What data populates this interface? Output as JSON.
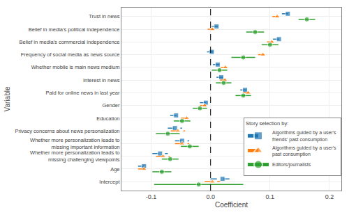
{
  "chart_data": {
    "type": "coefficient",
    "xlabel": "Coefficient",
    "ylabel": "Variable",
    "categories": [
      "Trust in news",
      "Belief in media's political independence",
      "Belief in media's commercial independence",
      "Frequency of social media as news source",
      "Whether mobile is main news medium",
      "Interest in news",
      "Paid for online news in last year",
      "Gender",
      "Education",
      "Privacy concerns about news personalization",
      "Whether more personalization leads to\nmissing important information",
      "Whether more personalization leads to\nmissing challenging viewpoints",
      "Age",
      "Intercept"
    ],
    "series": [
      {
        "name": "Algorithms guided by a user's\nfriends' past consumption",
        "marker": "square",
        "line_style": "dashed",
        "values": [
          0.13,
          0.01,
          0.115,
          0.002,
          0.012,
          0.018,
          0.058,
          -0.008,
          -0.058,
          -0.06,
          -0.048,
          -0.085,
          -0.112,
          0.02
        ],
        "ci_low": [
          0.12,
          0.002,
          0.105,
          -0.006,
          0.004,
          0.01,
          0.05,
          -0.018,
          -0.068,
          -0.072,
          -0.06,
          -0.098,
          -0.122,
          0.0
        ],
        "ci_high": [
          0.14,
          0.018,
          0.125,
          0.01,
          0.02,
          0.026,
          0.066,
          0.002,
          -0.048,
          -0.048,
          -0.036,
          -0.072,
          -0.102,
          0.04
        ]
      },
      {
        "name": "Algorithms guided by a user's\npast consumption",
        "marker": "triangle",
        "line_style": "dashed",
        "values": [
          0.112,
          0.003,
          0.103,
          0.088,
          0.025,
          0.024,
          0.063,
          -0.01,
          -0.04,
          -0.055,
          -0.048,
          -0.08,
          -0.112,
          0.003
        ],
        "ci_low": [
          0.104,
          -0.005,
          0.095,
          0.08,
          0.017,
          0.016,
          0.055,
          -0.018,
          -0.05,
          -0.067,
          -0.06,
          -0.092,
          -0.122,
          -0.01
        ],
        "ci_high": [
          0.12,
          0.011,
          0.111,
          0.096,
          0.033,
          0.032,
          0.071,
          -0.002,
          -0.03,
          -0.043,
          -0.036,
          -0.068,
          -0.102,
          0.016
        ]
      },
      {
        "name": "Editors/journalists",
        "marker": "circle",
        "line_style": "solid",
        "values": [
          0.162,
          0.075,
          0.1,
          0.055,
          0.015,
          0.022,
          0.055,
          -0.018,
          -0.048,
          -0.072,
          -0.035,
          -0.068,
          -0.082,
          -0.02
        ],
        "ci_low": [
          0.148,
          0.06,
          0.086,
          0.035,
          0.002,
          0.009,
          0.042,
          -0.03,
          -0.062,
          -0.092,
          -0.05,
          -0.082,
          -0.098,
          -0.095
        ],
        "ci_high": [
          0.176,
          0.09,
          0.114,
          0.075,
          0.028,
          0.035,
          0.068,
          -0.006,
          -0.034,
          -0.052,
          -0.02,
          -0.054,
          -0.066,
          0.055
        ]
      }
    ],
    "xlim": [
      -0.15,
      0.22
    ],
    "xticks": [
      -0.1,
      {
        "value": 0,
        "label": "0.0"
      },
      0.1,
      0.2
    ],
    "grid": true,
    "legend": "lower right",
    "legend_title": "Story selection by:",
    "vline_x": 0
  }
}
